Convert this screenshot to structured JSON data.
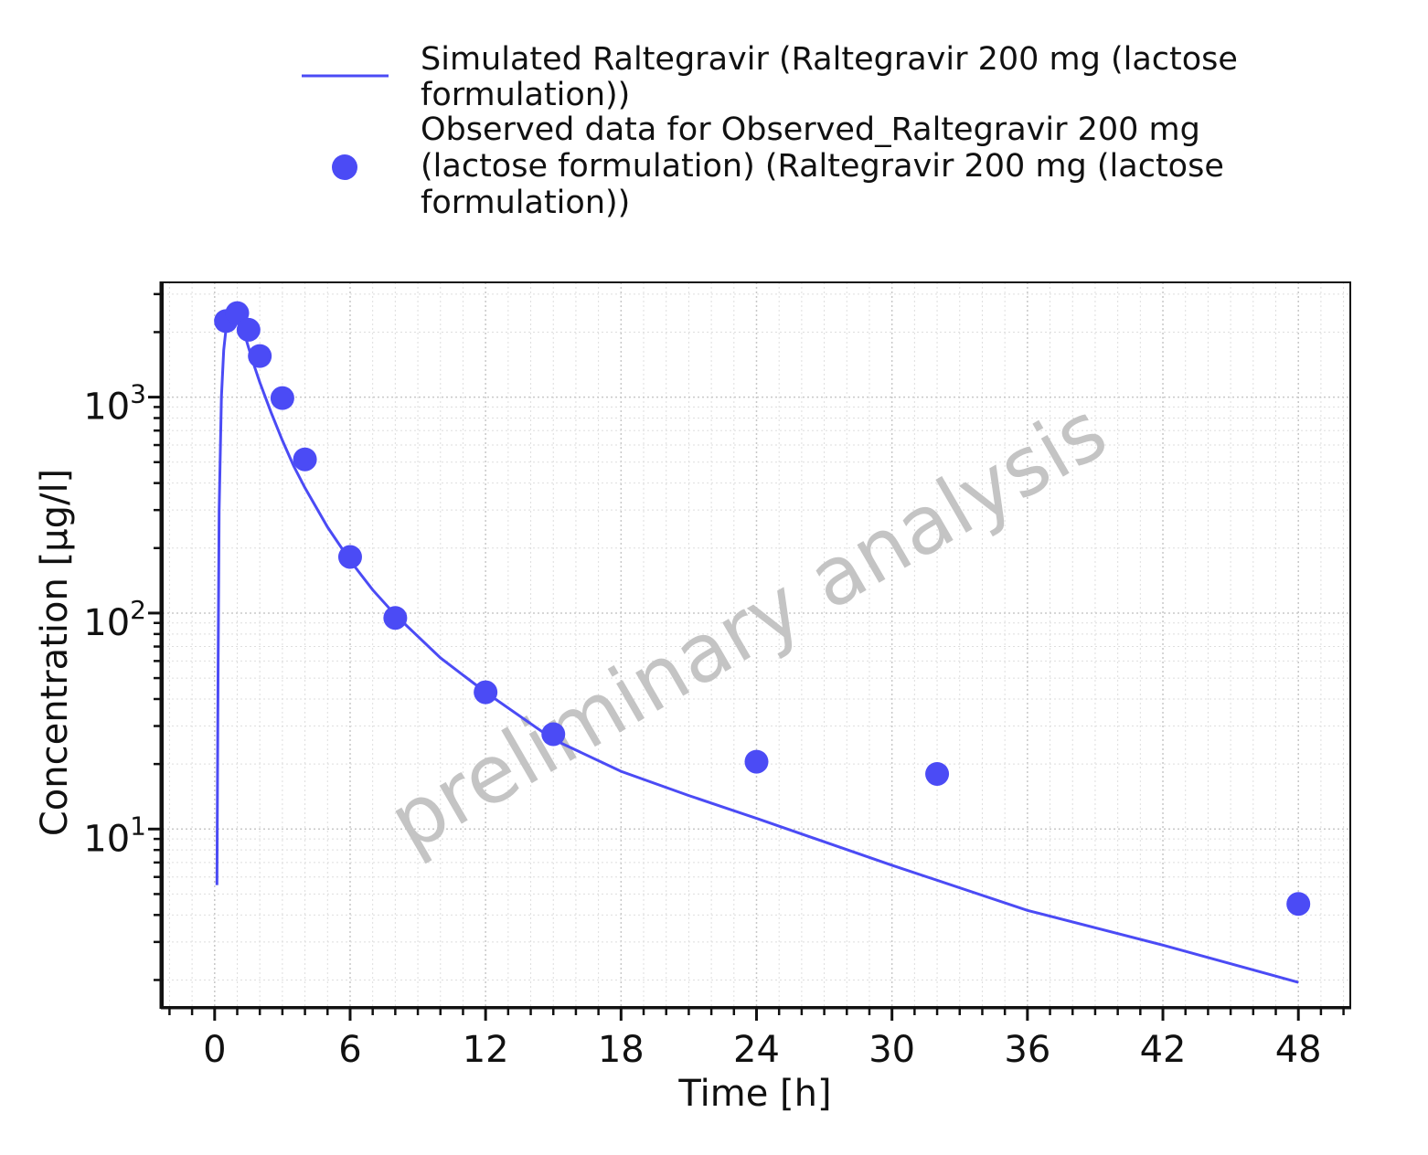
{
  "chart_data": {
    "type": "line",
    "xlabel": "Time [h]",
    "ylabel": "Concentration [µg/l]",
    "x_scale": "linear",
    "y_scale": "log",
    "xlim": [
      -2.3,
      50.3
    ],
    "ylim": [
      1.5,
      3400
    ],
    "x_ticks": [
      0,
      6,
      12,
      18,
      24,
      30,
      36,
      42,
      48
    ],
    "y_ticks": [
      {
        "value": 10,
        "base": "10",
        "exp": "1"
      },
      {
        "value": 100,
        "base": "10",
        "exp": "2"
      },
      {
        "value": 1000,
        "base": "10",
        "exp": "3"
      }
    ],
    "grid": true,
    "legend_position": "top",
    "watermark": "preliminary analysis",
    "series": [
      {
        "name": "Simulated Raltegravir (Raltegravir 200 mg (lactose formulation))",
        "legend_lines": [
          "Simulated Raltegravir (Raltegravir 200 mg (lactose",
          "formulation))"
        ],
        "kind": "line",
        "color": "#4b4bf5",
        "x": [
          0.1,
          0.15,
          0.2,
          0.3,
          0.4,
          0.5,
          0.6,
          0.75,
          0.9,
          1.0,
          1.1,
          1.3,
          1.5,
          1.75,
          2,
          2.5,
          3,
          3.5,
          4,
          5,
          6,
          7,
          8,
          10,
          12,
          15,
          18,
          21,
          24,
          30,
          36,
          42,
          48
        ],
        "y": [
          5.5,
          50,
          300,
          1000,
          1650,
          2050,
          2300,
          2450,
          2480,
          2450,
          2300,
          2000,
          1700,
          1400,
          1170,
          850,
          630,
          480,
          380,
          250,
          175,
          128,
          98,
          62,
          43,
          26,
          18.5,
          14.3,
          11.2,
          6.8,
          4.2,
          2.9,
          1.95
        ]
      },
      {
        "name": "Observed data for Observed_Raltegravir 200 mg (lactose formulation) (Raltegravir 200 mg (lactose formulation))",
        "legend_lines": [
          "Observed data for Observed_Raltegravir 200 mg",
          "(lactose formulation) (Raltegravir 200 mg (lactose",
          "formulation))"
        ],
        "kind": "scatter",
        "color": "#4b4bf5",
        "x": [
          0.5,
          1.0,
          1.5,
          2.0,
          3.0,
          4.0,
          6.0,
          8.0,
          12.0,
          15.0,
          24.0,
          32.0,
          48.0
        ],
        "y": [
          2250,
          2450,
          2050,
          1550,
          990,
          515,
          182,
          95,
          43,
          27.5,
          20.5,
          18,
          4.5
        ]
      }
    ]
  }
}
